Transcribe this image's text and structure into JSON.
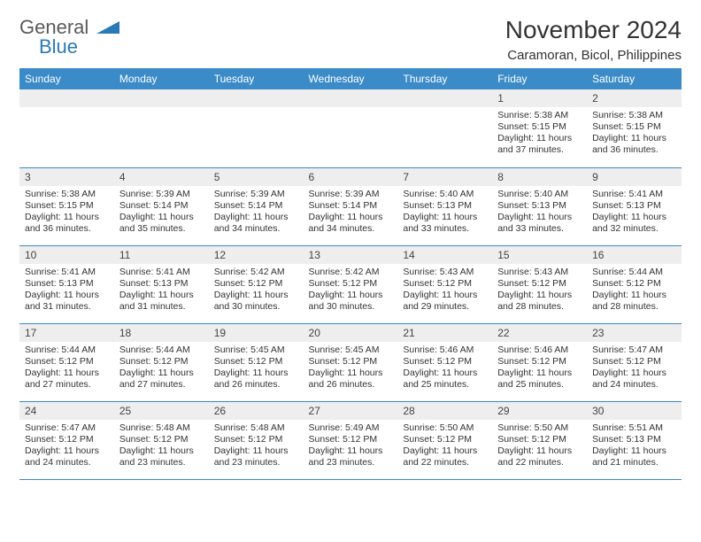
{
  "brand": {
    "text_general": "General",
    "text_blue": "Blue",
    "accent_color": "#2a7ab5"
  },
  "title": {
    "month": "November 2024",
    "location": "Caramoran, Bicol, Philippines"
  },
  "colors": {
    "header_bg": "#3b8bc8",
    "daynum_bg": "#eeeeee",
    "row_border": "#3b8bc8",
    "text": "#333333"
  },
  "weekdays": [
    "Sunday",
    "Monday",
    "Tuesday",
    "Wednesday",
    "Thursday",
    "Friday",
    "Saturday"
  ],
  "weeks": [
    [
      {
        "empty": true
      },
      {
        "empty": true
      },
      {
        "empty": true
      },
      {
        "empty": true
      },
      {
        "empty": true
      },
      {
        "n": "1",
        "sunrise": "5:38 AM",
        "sunset": "5:15 PM",
        "daylight": "11 hours and 37 minutes."
      },
      {
        "n": "2",
        "sunrise": "5:38 AM",
        "sunset": "5:15 PM",
        "daylight": "11 hours and 36 minutes."
      }
    ],
    [
      {
        "n": "3",
        "sunrise": "5:38 AM",
        "sunset": "5:15 PM",
        "daylight": "11 hours and 36 minutes."
      },
      {
        "n": "4",
        "sunrise": "5:39 AM",
        "sunset": "5:14 PM",
        "daylight": "11 hours and 35 minutes."
      },
      {
        "n": "5",
        "sunrise": "5:39 AM",
        "sunset": "5:14 PM",
        "daylight": "11 hours and 34 minutes."
      },
      {
        "n": "6",
        "sunrise": "5:39 AM",
        "sunset": "5:14 PM",
        "daylight": "11 hours and 34 minutes."
      },
      {
        "n": "7",
        "sunrise": "5:40 AM",
        "sunset": "5:13 PM",
        "daylight": "11 hours and 33 minutes."
      },
      {
        "n": "8",
        "sunrise": "5:40 AM",
        "sunset": "5:13 PM",
        "daylight": "11 hours and 33 minutes."
      },
      {
        "n": "9",
        "sunrise": "5:41 AM",
        "sunset": "5:13 PM",
        "daylight": "11 hours and 32 minutes."
      }
    ],
    [
      {
        "n": "10",
        "sunrise": "5:41 AM",
        "sunset": "5:13 PM",
        "daylight": "11 hours and 31 minutes."
      },
      {
        "n": "11",
        "sunrise": "5:41 AM",
        "sunset": "5:13 PM",
        "daylight": "11 hours and 31 minutes."
      },
      {
        "n": "12",
        "sunrise": "5:42 AM",
        "sunset": "5:12 PM",
        "daylight": "11 hours and 30 minutes."
      },
      {
        "n": "13",
        "sunrise": "5:42 AM",
        "sunset": "5:12 PM",
        "daylight": "11 hours and 30 minutes."
      },
      {
        "n": "14",
        "sunrise": "5:43 AM",
        "sunset": "5:12 PM",
        "daylight": "11 hours and 29 minutes."
      },
      {
        "n": "15",
        "sunrise": "5:43 AM",
        "sunset": "5:12 PM",
        "daylight": "11 hours and 28 minutes."
      },
      {
        "n": "16",
        "sunrise": "5:44 AM",
        "sunset": "5:12 PM",
        "daylight": "11 hours and 28 minutes."
      }
    ],
    [
      {
        "n": "17",
        "sunrise": "5:44 AM",
        "sunset": "5:12 PM",
        "daylight": "11 hours and 27 minutes."
      },
      {
        "n": "18",
        "sunrise": "5:44 AM",
        "sunset": "5:12 PM",
        "daylight": "11 hours and 27 minutes."
      },
      {
        "n": "19",
        "sunrise": "5:45 AM",
        "sunset": "5:12 PM",
        "daylight": "11 hours and 26 minutes."
      },
      {
        "n": "20",
        "sunrise": "5:45 AM",
        "sunset": "5:12 PM",
        "daylight": "11 hours and 26 minutes."
      },
      {
        "n": "21",
        "sunrise": "5:46 AM",
        "sunset": "5:12 PM",
        "daylight": "11 hours and 25 minutes."
      },
      {
        "n": "22",
        "sunrise": "5:46 AM",
        "sunset": "5:12 PM",
        "daylight": "11 hours and 25 minutes."
      },
      {
        "n": "23",
        "sunrise": "5:47 AM",
        "sunset": "5:12 PM",
        "daylight": "11 hours and 24 minutes."
      }
    ],
    [
      {
        "n": "24",
        "sunrise": "5:47 AM",
        "sunset": "5:12 PM",
        "daylight": "11 hours and 24 minutes."
      },
      {
        "n": "25",
        "sunrise": "5:48 AM",
        "sunset": "5:12 PM",
        "daylight": "11 hours and 23 minutes."
      },
      {
        "n": "26",
        "sunrise": "5:48 AM",
        "sunset": "5:12 PM",
        "daylight": "11 hours and 23 minutes."
      },
      {
        "n": "27",
        "sunrise": "5:49 AM",
        "sunset": "5:12 PM",
        "daylight": "11 hours and 23 minutes."
      },
      {
        "n": "28",
        "sunrise": "5:50 AM",
        "sunset": "5:12 PM",
        "daylight": "11 hours and 22 minutes."
      },
      {
        "n": "29",
        "sunrise": "5:50 AM",
        "sunset": "5:12 PM",
        "daylight": "11 hours and 22 minutes."
      },
      {
        "n": "30",
        "sunrise": "5:51 AM",
        "sunset": "5:13 PM",
        "daylight": "11 hours and 21 minutes."
      }
    ]
  ],
  "labels": {
    "sunrise": "Sunrise: ",
    "sunset": "Sunset: ",
    "daylight": "Daylight: "
  }
}
